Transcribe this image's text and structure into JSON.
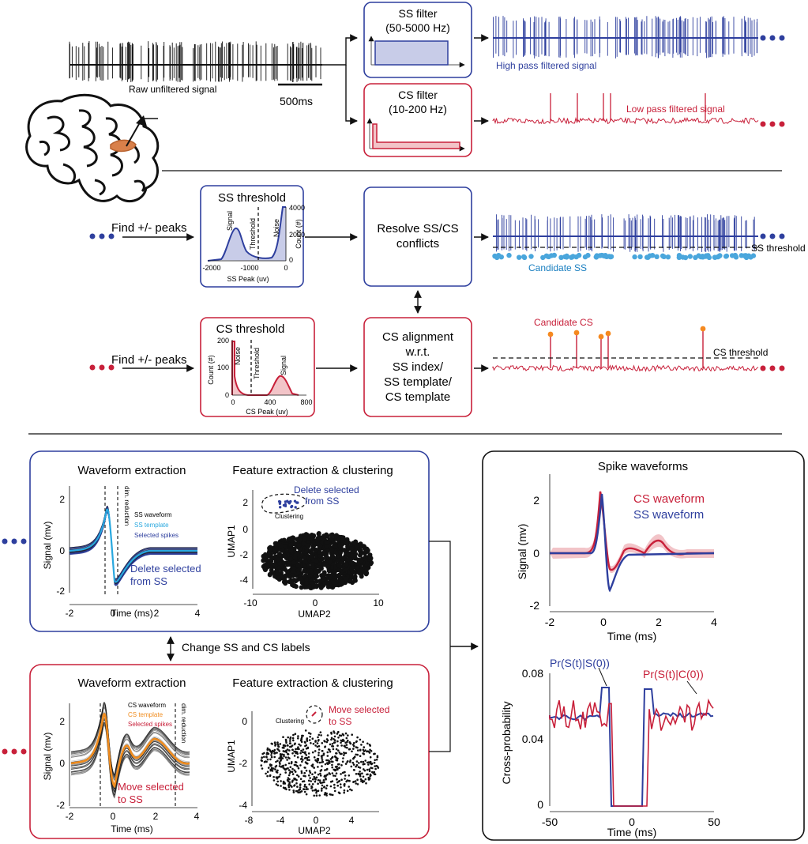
{
  "colors": {
    "ss_blue": "#2e3f9e",
    "ss_fill": "#c8cce8",
    "cs_red": "#c8203a",
    "cs_fill": "#f2c4c8",
    "ss_template": "#29a8df",
    "cs_template": "#f08c1e",
    "orange_dot": "#f5891f",
    "cerebellum_highlight": "#d9804a",
    "black": "#111111"
  },
  "section1": {
    "raw_label": "Raw unfiltered signal",
    "scale_bar_label": "500ms",
    "ss_filter": {
      "title": "SS filter",
      "range": "(50-5000 Hz)"
    },
    "cs_filter": {
      "title": "CS filter",
      "range": "(10-200 Hz)"
    },
    "high_pass_label": "High pass filtered signal",
    "low_pass_label": "Low pass filtered signal"
  },
  "section2": {
    "find_peaks_1": "Find +/- peaks",
    "find_peaks_2": "Find +/- peaks",
    "ss_threshold": {
      "title": "SS threshold",
      "xlabel": "SS Peak (uv)",
      "ylabel": "Count (#)",
      "xticks": [
        "-2000",
        "-1000",
        "0"
      ],
      "yticks": [
        "0",
        "2000",
        "4000"
      ],
      "signal_label": "Signal",
      "threshold_label": "Threshold",
      "noise_label": "Noise"
    },
    "cs_threshold": {
      "title": "CS threshold",
      "xlabel": "CS Peak (uv)",
      "ylabel": "Count (#)",
      "xticks": [
        "0",
        "400",
        "800"
      ],
      "yticks": [
        "0",
        "100",
        "200"
      ],
      "signal_label": "Signal",
      "threshold_label": "Threshold",
      "noise_label": "Noise"
    },
    "resolve_box": {
      "line1": "Resolve SS/CS",
      "line2": "conflicts"
    },
    "align_box": {
      "line1": "CS alignment",
      "line2": "w.r.t.",
      "line3": "SS index/",
      "line4": "SS template/",
      "line5": "CS template"
    },
    "ss_threshold_label": "SS threshold",
    "candidate_ss": "Candidate SS",
    "candidate_cs": "Candidate CS",
    "cs_threshold_label": "CS threshold"
  },
  "section3": {
    "waveform_title": "Waveform extraction",
    "feature_title": "Feature extraction & clustering",
    "change_labels": "Change SS and CS labels",
    "ss_panel": {
      "legend": [
        "SS waveform",
        "SS template",
        "Selected spikes"
      ],
      "dim_reduction": "dim. reduction",
      "delete_label_1": "Delete selected",
      "delete_label_2": "from SS",
      "umap_delete_1": "Delete selected",
      "umap_delete_2": "from SS",
      "clustering": "Clustering",
      "ylabel": "Signal (mv)",
      "xlabel": "Time (ms)",
      "xticks": [
        "-2",
        "0",
        "2",
        "4"
      ],
      "yticks": [
        "-2",
        "0",
        "2"
      ],
      "umap_xlabel": "UMAP2",
      "umap_ylabel": "UMAP1",
      "umap_xticks": [
        "-10",
        "0",
        "10"
      ],
      "umap_yticks": [
        "-4",
        "-2",
        "0",
        "2"
      ]
    },
    "cs_panel": {
      "legend": [
        "CS waveform",
        "CS template",
        "Selected spikes"
      ],
      "dim_reduction": "dim. reduction",
      "move_label_1": "Move selected",
      "move_label_2": "to SS",
      "umap_move_1": "Move selected",
      "umap_move_2": "to SS",
      "clustering": "Clustering",
      "ylabel": "Signal (mv)",
      "xlabel": "Time (ms)",
      "xticks": [
        "-2",
        "0",
        "2",
        "4"
      ],
      "yticks": [
        "-2",
        "0",
        "2"
      ],
      "umap_xlabel": "UMAP2",
      "umap_ylabel": "UMAP1",
      "umap_xticks": [
        "-8",
        "-4",
        "0",
        "4"
      ],
      "umap_yticks": [
        "-4",
        "-2",
        "0"
      ]
    },
    "right_panel": {
      "title": "Spike waveforms",
      "cs_waveform": "CS waveform",
      "ss_waveform": "SS waveform",
      "wave_ylabel": "Signal (mv)",
      "wave_xlabel": "Time (ms)",
      "wave_xticks": [
        "-2",
        "0",
        "2",
        "4"
      ],
      "wave_yticks": [
        "-2",
        "0",
        "2"
      ],
      "pr_ss": "Pr(S(t)|S(0))",
      "pr_cs": "Pr(S(t)|C(0))",
      "cp_ylabel": "Cross-probability",
      "cp_xlabel": "Time (ms)",
      "cp_xticks": [
        "-50",
        "0",
        "50"
      ],
      "cp_yticks": [
        "0",
        "0.04",
        "0.08"
      ]
    }
  }
}
